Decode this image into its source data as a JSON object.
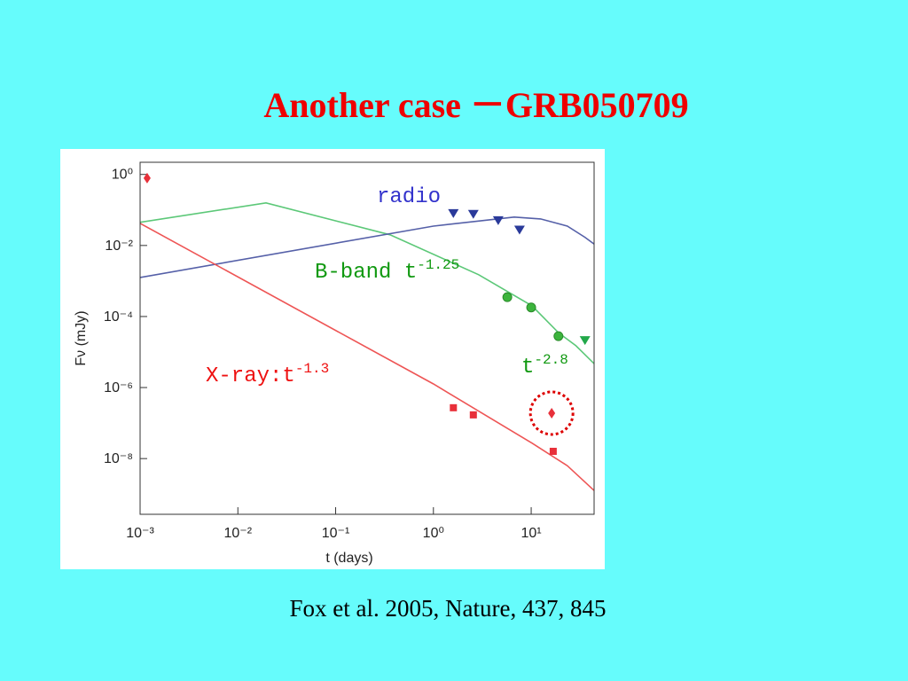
{
  "slide": {
    "title": "Another case －GRB050709",
    "caption": "Fox et al. 2005, Nature, 437, 845"
  },
  "chart_data": {
    "type": "scatter",
    "xlabel": "t (days)",
    "ylabel": "Fν (mJy)",
    "log_x": true,
    "log_y": true,
    "xlim": [
      0.001,
      44
    ],
    "ylim": [
      2.7e-10,
      2.2
    ],
    "xticks": [
      {
        "value": 0.001,
        "label": "10⁻³"
      },
      {
        "value": 0.01,
        "label": "10⁻²"
      },
      {
        "value": 0.1,
        "label": "10⁻¹"
      },
      {
        "value": 1,
        "label": "10⁰"
      },
      {
        "value": 10,
        "label": "10¹"
      }
    ],
    "yticks": [
      {
        "value": 1,
        "label": "10⁰"
      },
      {
        "value": 0.01,
        "label": "10⁻²"
      },
      {
        "value": 0.0001,
        "label": "10⁻⁴"
      },
      {
        "value": 1e-06,
        "label": "10⁻⁶"
      },
      {
        "value": 1e-08,
        "label": "10⁻⁸"
      }
    ],
    "series": [
      {
        "marker": "line",
        "color": "#5cc878",
        "x": [
          0.001,
          0.0194,
          0.36,
          2.9,
          10.2,
          19,
          28.7,
          44
        ],
        "values": [
          0.045,
          0.158,
          0.02,
          0.0015,
          0.0002,
          3.5e-05,
          1.5e-05,
          4.7e-06
        ]
      },
      {
        "marker": "line",
        "color": "#5560a8",
        "x": [
          0.001,
          1,
          6.7,
          12.5,
          23.4,
          35.5,
          44
        ],
        "values": [
          0.00126,
          0.035,
          0.063,
          0.056,
          0.035,
          0.017,
          0.011
        ]
      },
      {
        "marker": "line",
        "color": "#ee5555",
        "x": [
          0.001,
          1,
          10.3,
          23.4,
          44
        ],
        "values": [
          0.042,
          1.26e-06,
          2.66e-08,
          6.3e-09,
          1.26e-09
        ]
      },
      {
        "marker": "diamond",
        "color": "#e8303a",
        "x": [
          0.00118,
          16.2
        ],
        "values": [
          0.79,
          1.9e-07
        ]
      },
      {
        "marker": "square",
        "color": "#e8303a",
        "x": [
          1.6,
          2.56,
          16.8
        ],
        "values": [
          2.7e-07,
          1.7e-07,
          1.6e-08
        ]
      },
      {
        "marker": "triangle-down",
        "color": "#2a3a9a",
        "x": [
          1.6,
          2.56,
          4.6,
          7.6
        ],
        "values": [
          0.079,
          0.075,
          0.05,
          0.027
        ]
      },
      {
        "marker": "circle",
        "color": "#3cb43c",
        "x": [
          5.7,
          10,
          19
        ],
        "values": [
          0.00035,
          0.00018,
          2.8e-05
        ]
      },
      {
        "marker": "triangle-down",
        "color": "#22a84a",
        "x": [
          35.5
        ],
        "values": [
          2.1e-05
        ]
      }
    ],
    "annotations": [
      {
        "text": "radio",
        "color": "#3333cc"
      },
      {
        "text": "B-band t",
        "sup": "-1.25",
        "color": "#119911"
      },
      {
        "text": "t",
        "sup": "-2.8",
        "color": "#119911"
      },
      {
        "text": "X-ray:t",
        "sup": "-1.3",
        "color": "#ee1111"
      }
    ]
  }
}
